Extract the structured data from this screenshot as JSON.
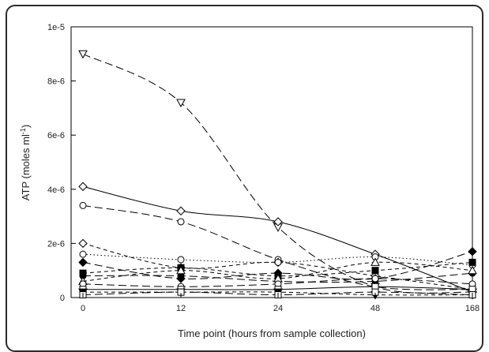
{
  "chart_data": {
    "type": "line",
    "x": [
      "0",
      "12",
      "24",
      "48",
      "168"
    ],
    "xlabel": "Time point (hours from sample collection)",
    "ylabel_main": "ATP (moles ml",
    "ylabel_sup": "-1",
    "ylabel_close": ")",
    "ylim": [
      0,
      1e-05
    ],
    "yticks": [
      {
        "value": 0,
        "label": "0"
      },
      {
        "value": 2e-06,
        "label": "2e-6"
      },
      {
        "value": 4e-06,
        "label": "4e-6"
      },
      {
        "value": 6e-06,
        "label": "6e-6"
      },
      {
        "value": 8e-06,
        "label": "8e-6"
      },
      {
        "value": 1e-05,
        "label": "1e-5"
      }
    ],
    "grid": false,
    "series": [
      {
        "marker": "triangle-down-open",
        "dash": "long",
        "values": [
          9e-06,
          7.2e-06,
          2.6e-06,
          4e-07,
          2e-07
        ]
      },
      {
        "marker": "diamond-open",
        "dash": "solid",
        "values": [
          4.1e-06,
          3.2e-06,
          2.8e-06,
          1.6e-06,
          2e-07
        ]
      },
      {
        "marker": "circle-open",
        "dash": "long",
        "values": [
          3.4e-06,
          2.8e-06,
          1.4e-06,
          4e-07,
          3e-07
        ]
      },
      {
        "marker": "diamond-open",
        "dash": "short",
        "values": [
          2e-06,
          1.1e-06,
          1.3e-06,
          8e-07,
          3e-07
        ]
      },
      {
        "marker": "circle-open",
        "dash": "dotted",
        "values": [
          1.6e-06,
          1.4e-06,
          1.3e-06,
          1.5e-06,
          1.2e-06
        ]
      },
      {
        "marker": "diamond-filled",
        "dash": "long",
        "values": [
          1.3e-06,
          7e-07,
          9e-07,
          7e-07,
          1.7e-06
        ]
      },
      {
        "marker": "square-filled",
        "dash": "short",
        "values": [
          9e-07,
          1.1e-06,
          8e-07,
          1e-06,
          1.3e-06
        ]
      },
      {
        "marker": "circle-filled",
        "dash": "long",
        "values": [
          8e-07,
          8e-07,
          6e-07,
          6e-07,
          9e-07
        ]
      },
      {
        "marker": "triangle-up-open",
        "dash": "short",
        "values": [
          6e-07,
          1e-06,
          7e-07,
          1.3e-06,
          1e-06
        ]
      },
      {
        "marker": "circle-open",
        "dash": "long",
        "values": [
          5e-07,
          4e-07,
          5e-07,
          7e-07,
          5e-07
        ]
      },
      {
        "marker": "square-open",
        "dash": "solid",
        "values": [
          3e-07,
          3e-07,
          3e-07,
          4e-07,
          3e-07
        ]
      },
      {
        "marker": "triangle-down-filled",
        "dash": "short",
        "values": [
          2e-07,
          2e-07,
          2e-07,
          1e-07,
          1e-07
        ]
      },
      {
        "marker": "square-open",
        "dash": "long",
        "values": [
          1e-07,
          2e-07,
          1e-07,
          2e-07,
          1e-07
        ]
      }
    ]
  }
}
